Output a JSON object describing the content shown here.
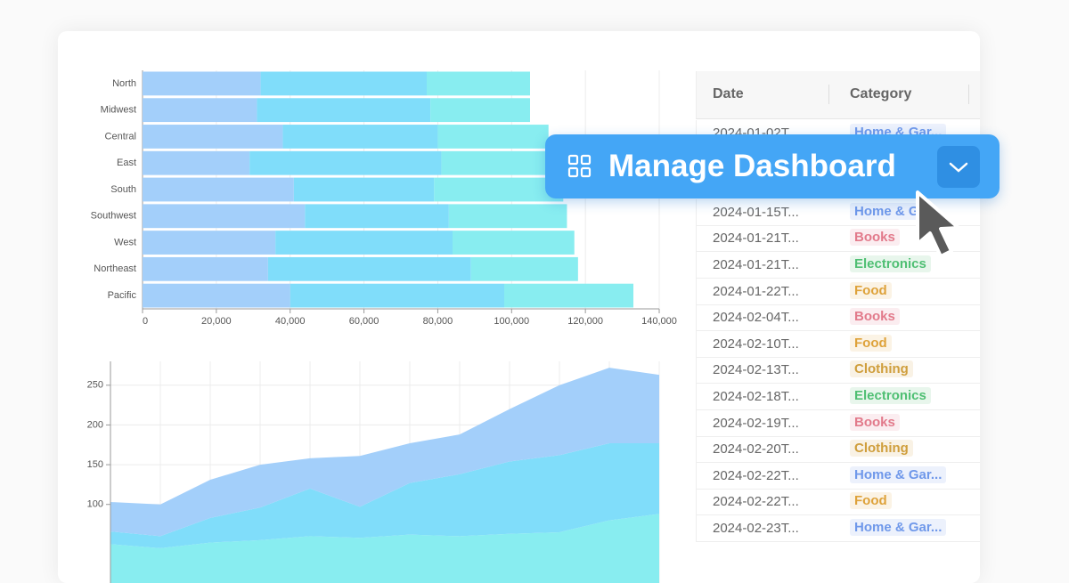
{
  "chart_data": [
    {
      "type": "bar",
      "orientation": "horizontal",
      "stacked": true,
      "categories": [
        "North",
        "Midwest",
        "Central",
        "East",
        "South",
        "Southwest",
        "West",
        "Northeast",
        "Pacific"
      ],
      "series": [
        {
          "color": "#a3cffa",
          "values": [
            32000,
            31000,
            38000,
            29000,
            41000,
            44000,
            36000,
            34000,
            40000
          ]
        },
        {
          "color": "#80ddfa",
          "values": [
            45000,
            47000,
            42000,
            52000,
            38000,
            39000,
            48000,
            55000,
            58000
          ]
        },
        {
          "color": "#88edf0",
          "values": [
            28000,
            27000,
            30000,
            33000,
            35000,
            32000,
            33000,
            29000,
            35000
          ]
        }
      ],
      "xlim": [
        0,
        140000
      ],
      "xticks": [
        0,
        {
          "value": 20000,
          "label": "20,000"
        },
        {
          "value": 40000,
          "label": "40,000"
        },
        {
          "value": 60000,
          "label": "60,000"
        },
        {
          "value": 80000,
          "label": "80,000"
        },
        {
          "value": 100000,
          "label": "100,000"
        },
        {
          "value": 120000,
          "label": "120,000"
        },
        {
          "value": 140000,
          "label": "140,000"
        }
      ],
      "grid": true
    },
    {
      "type": "area",
      "stacked": true,
      "categories": [
        null,
        null,
        null,
        null,
        null,
        null,
        null,
        null,
        null,
        null,
        null,
        null
      ],
      "series": [
        {
          "color": "#88edf0",
          "values": [
            50,
            45,
            52,
            55,
            60,
            58,
            62,
            60,
            63,
            65,
            80,
            88
          ]
        },
        {
          "color": "#80ddfa",
          "values": [
            16,
            15,
            31,
            41,
            60,
            39,
            65,
            78,
            91,
            97,
            97,
            89
          ]
        },
        {
          "color": "#a3cffa",
          "values": [
            37,
            40,
            48,
            54,
            38,
            64,
            50,
            50,
            66,
            88,
            95,
            86
          ]
        }
      ],
      "ylim": [
        0,
        280
      ],
      "yticks": [
        100,
        150,
        200,
        250
      ],
      "grid": true
    }
  ],
  "table": {
    "columns": [
      "Date",
      "Category"
    ],
    "rows": [
      {
        "date": "2024-01-02T...",
        "category": "Home & Gar...",
        "color": "#6f98ea"
      },
      {
        "date": "2024-01-15T...",
        "category": "Home & G",
        "color": "#6f98ea"
      },
      {
        "date": "2024-01-21T...",
        "category": "Books",
        "color": "#e27a8b"
      },
      {
        "date": "2024-01-21T...",
        "category": "Electronics",
        "color": "#4fbf73"
      },
      {
        "date": "2024-01-22T...",
        "category": "Food",
        "color": "#dea23a"
      },
      {
        "date": "2024-02-04T...",
        "category": "Books",
        "color": "#e27a8b"
      },
      {
        "date": "2024-02-10T...",
        "category": "Food",
        "color": "#dea23a"
      },
      {
        "date": "2024-02-13T...",
        "category": "Clothing",
        "color": "#cf9e3c"
      },
      {
        "date": "2024-02-18T...",
        "category": "Electronics",
        "color": "#4fbf73"
      },
      {
        "date": "2024-02-19T...",
        "category": "Books",
        "color": "#e27a8b"
      },
      {
        "date": "2024-02-20T...",
        "category": "Clothing",
        "color": "#cf9e3c"
      },
      {
        "date": "2024-02-22T...",
        "category": "Home & Gar...",
        "color": "#6f98ea"
      },
      {
        "date": "2024-02-22T...",
        "category": "Food",
        "color": "#dea23a"
      },
      {
        "date": "2024-02-23T...",
        "category": "Home & Gar...",
        "color": "#6f98ea"
      }
    ]
  },
  "button": {
    "label": "Manage Dashboard"
  }
}
